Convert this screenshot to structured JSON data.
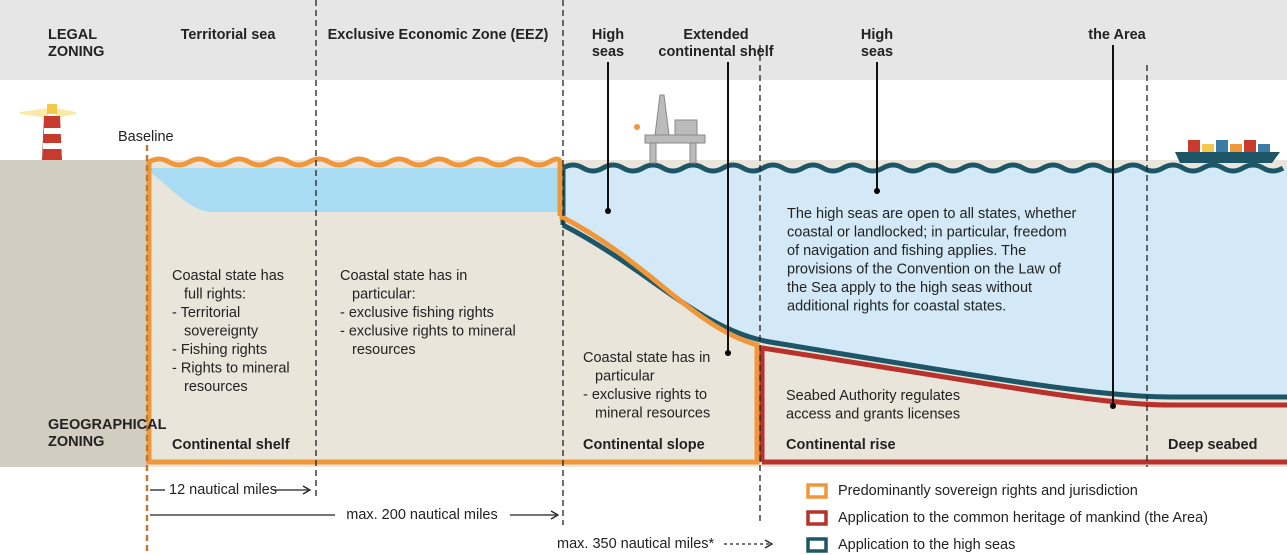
{
  "legal_zoning": [
    "LEGAL",
    "ZONING"
  ],
  "geographical_zoning": [
    "GEOGRAPHICAL",
    "ZONING"
  ],
  "legal_zones": [
    [
      "Territorial sea"
    ],
    [
      "Exclusive Economic Zone (EEZ)"
    ],
    [
      "High",
      "seas"
    ],
    [
      "Extended",
      "continental shelf"
    ],
    [
      "High",
      "seas"
    ],
    [
      "the Area"
    ]
  ],
  "baseline": "Baseline",
  "descriptions": [
    [
      "Coastal state has",
      "full rights:",
      "- Territorial",
      "sovereignty",
      "- Fishing rights",
      "- Rights to mineral",
      "resources"
    ],
    [
      "Coastal state has in",
      "particular:",
      "- exclusive fishing rights",
      "- exclusive rights to mineral",
      "resources"
    ],
    [
      "Coastal state has in",
      "particular",
      "- exclusive rights to",
      "mineral resources"
    ],
    [
      "The high seas are open to all states, whether",
      "coastal or landlocked; in particular, freedom",
      "of navigation and fishing applies. The",
      "provisions of the Convention on the Law of",
      "the Sea apply to the high seas without",
      "additional rights for coastal states."
    ],
    [
      "Seabed Authority regulates",
      "access and grants licenses"
    ]
  ],
  "geographical_zones": [
    "Continental shelf",
    "Continental slope",
    "Continental rise",
    "Deep seabed"
  ],
  "distances": [
    "12 nautical miles",
    "max. 200 nautical miles",
    "max. 350 nautical miles*"
  ],
  "legend": [
    {
      "label": "Predominantly sovereign rights and jurisdiction",
      "color": "#f0973a"
    },
    {
      "label": "Application to the common heritage of mankind (the Area)",
      "color": "#b8312b"
    },
    {
      "label": "Application to the high seas",
      "color": "#1d5667"
    }
  ]
}
